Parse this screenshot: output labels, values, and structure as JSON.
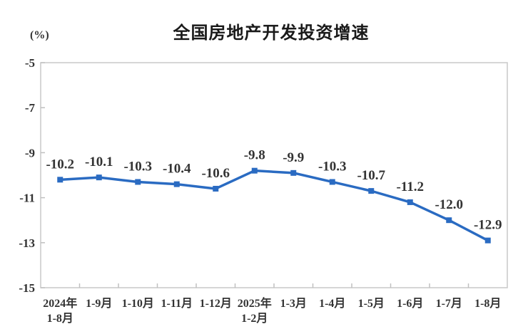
{
  "chart": {
    "title": "全国房地产开发投资增速",
    "unit_label": "(%)"
  },
  "chart_data": {
    "type": "line",
    "title": "全国房地产开发投资增速",
    "ylabel": "%",
    "categories": [
      [
        "2024年",
        "1-8月"
      ],
      [
        "1-9月"
      ],
      [
        "1-10月"
      ],
      [
        "1-11月"
      ],
      [
        "1-12月"
      ],
      [
        "2025年",
        "1-2月"
      ],
      [
        "1-3月"
      ],
      [
        "1-4月"
      ],
      [
        "1-5月"
      ],
      [
        "1-6月"
      ],
      [
        "1-7月"
      ],
      [
        "1-8月"
      ]
    ],
    "values": [
      -10.2,
      -10.1,
      -10.3,
      -10.4,
      -10.6,
      -9.8,
      -9.9,
      -10.3,
      -10.7,
      -11.2,
      -12.0,
      -12.9
    ],
    "data_labels": [
      "-10.2",
      "-10.1",
      "-10.3",
      "-10.4",
      "-10.6",
      "-9.8",
      "-9.9",
      "-10.3",
      "-10.7",
      "-11.2",
      "-12.0",
      "-12.9"
    ],
    "y_ticks": [
      -5,
      -7,
      -9,
      -11,
      -13,
      -15
    ],
    "y_tick_labels": [
      "-5",
      "-7",
      "-9",
      "-11",
      "-13",
      "-15"
    ],
    "ylim": [
      -15,
      -5
    ],
    "grid": false,
    "legend": "none",
    "marker": "square",
    "colors": {
      "line": "#2A6BC2",
      "marker": "#2A6BC2",
      "axis": "#c9c9c9",
      "tick": "#c0c0c0",
      "text": "#333333",
      "title": "#1a1a1a"
    }
  }
}
